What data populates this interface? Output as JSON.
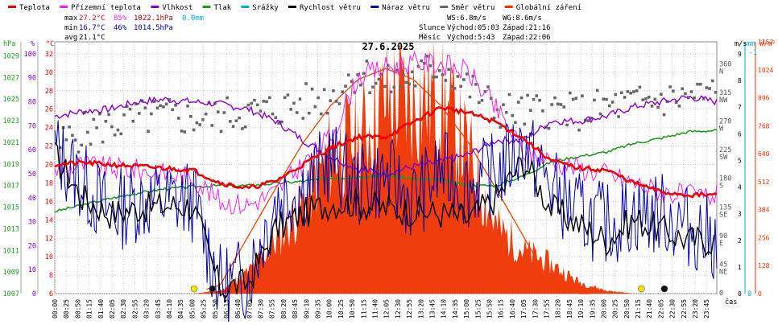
{
  "chart_data": {
    "type": "line",
    "title": "27.6.2025",
    "xlabel": "čas",
    "legend": [
      {
        "label": "Teplota",
        "color": "#ee0000"
      },
      {
        "label": "Přízemní teplota",
        "color": "#ee22ee"
      },
      {
        "label": "Vlhkost",
        "color": "#8800cc"
      },
      {
        "label": "Tlak",
        "color": "#229922"
      },
      {
        "label": "Srážky",
        "color": "#00aacc"
      },
      {
        "label": "Rychlost větru",
        "color": "#000000"
      },
      {
        "label": "Náraz větru",
        "color": "#0000aa"
      },
      {
        "label": "Směr větru",
        "color": "#666666"
      },
      {
        "label": "Globální záření",
        "color": "#ee3300"
      }
    ],
    "stats": {
      "max": {
        "label": "max",
        "temp": "27.2°C",
        "hum": "85%",
        "press": "1022.1hPa",
        "rain": "0.0mm"
      },
      "min": {
        "label": "min",
        "temp": "16.7°C",
        "hum": "46%",
        "press": "1014.5hPa"
      },
      "avg": {
        "label": "avg",
        "temp": "21.1°C"
      }
    },
    "info": {
      "ws": "WS:6.8m/s",
      "wg": "WG:8.6m/s",
      "sun_label": "Slunce",
      "sun_rise": "Východ:05:03",
      "sun_set": "Západ:21:16",
      "moon_label": "Měsíc",
      "moon_rise": "Východ:5:43",
      "moon_set": "Západ:22:06"
    },
    "axes": {
      "hpa": {
        "label": "hPa",
        "ticks": [
          "1029",
          "1027",
          "1025",
          "1023",
          "1021",
          "1019",
          "1017",
          "1015",
          "1013",
          "1011",
          "1009",
          "1007"
        ]
      },
      "pct": {
        "label": "%",
        "ticks": [
          "100",
          "90",
          "80",
          "70",
          "60",
          "50",
          "40",
          "30",
          "20",
          "10",
          "0"
        ]
      },
      "celsius": {
        "label": "°C",
        "ticks": [
          "32",
          "30",
          "28",
          "26",
          "24",
          "22",
          "20",
          "18",
          "16",
          "14",
          "12",
          "10",
          "8",
          "6"
        ]
      },
      "dir": {
        "label": "m/s",
        "ticks": [
          "360 N",
          "315 NW",
          "270 W",
          "225 SW",
          "180 S",
          "135 SE",
          "90 E",
          "45 NE",
          "0"
        ]
      },
      "ms": {
        "ticks": [
          "9",
          "8",
          "7",
          "6",
          "5",
          "4",
          "3",
          "2",
          "1",
          "0"
        ]
      },
      "mm": {
        "label": "mm",
        "ticks": [
          "-1",
          "0"
        ]
      },
      "wm": {
        "label": "W/m²",
        "ticks": [
          "1152",
          "1024",
          "896",
          "768",
          "640",
          "512",
          "384",
          "256",
          "128",
          "0"
        ]
      },
      "ylim": {
        "temp": [
          6,
          33.3
        ],
        "hum": [
          0,
          105
        ],
        "press": [
          1007,
          1030.3
        ],
        "dir": [
          0,
          396
        ],
        "wind": [
          0,
          9.45
        ],
        "rad": [
          0,
          1152
        ]
      }
    },
    "x_ticks": [
      "00:00",
      "00:25",
      "00:50",
      "01:15",
      "01:40",
      "02:05",
      "02:30",
      "02:55",
      "03:20",
      "03:45",
      "04:10",
      "04:35",
      "05:00",
      "05:25",
      "05:50",
      "06:15",
      "06:40",
      "07:05",
      "07:30",
      "07:55",
      "08:20",
      "08:45",
      "09:10",
      "09:35",
      "10:00",
      "10:25",
      "10:50",
      "11:15",
      "11:40",
      "12:05",
      "12:30",
      "12:55",
      "13:20",
      "13:45",
      "14:10",
      "14:35",
      "15:00",
      "15:25",
      "15:50",
      "16:15",
      "16:40",
      "17:05",
      "17:30",
      "17:55",
      "18:20",
      "18:45",
      "19:10",
      "19:35",
      "20:00",
      "20:25",
      "20:50",
      "21:15",
      "21:40",
      "22:05",
      "22:30",
      "22:55",
      "23:20",
      "23:45"
    ],
    "hours": [
      0,
      1,
      2,
      3,
      4,
      5,
      6,
      7,
      8,
      9,
      10,
      11,
      12,
      13,
      14,
      15,
      16,
      17,
      18,
      19,
      20,
      21,
      22,
      23,
      24
    ],
    "temperature": [
      20.0,
      20.2,
      20.0,
      19.8,
      19.6,
      19.4,
      18.0,
      17.4,
      18.2,
      20.0,
      21.8,
      23.0,
      23.0,
      24.6,
      26.2,
      25.6,
      24.6,
      22.8,
      20.4,
      19.6,
      19.4,
      18.0,
      17.0,
      16.7,
      16.7
    ],
    "ground_temperature": [
      19.4,
      20.0,
      19.6,
      19.4,
      19.0,
      18.6,
      16.0,
      15.6,
      17.0,
      20.0,
      23.0,
      29.5,
      30.5,
      31.0,
      31.0,
      30.0,
      26.0,
      21.4,
      20.4,
      19.6,
      19.0,
      18.0,
      17.0,
      16.6,
      16.6
    ],
    "humidity": [
      74,
      76,
      77,
      80,
      81,
      80,
      79,
      77,
      72,
      64,
      57,
      52,
      50,
      53,
      55,
      58,
      64,
      64,
      72,
      72,
      74,
      78,
      80,
      82,
      80
    ],
    "pressure": [
      1014.6,
      1015.2,
      1015.8,
      1016.3,
      1016.7,
      1016.9,
      1017.0,
      1017.0,
      1017.2,
      1017.4,
      1017.7,
      1017.8,
      1018.0,
      1017.6,
      1017.5,
      1017.0,
      1017.0,
      1017.9,
      1019.2,
      1019.7,
      1020.1,
      1020.9,
      1021.4,
      1022.0,
      1022.1
    ],
    "wind_speed": [
      5.2,
      3.6,
      3.0,
      3.2,
      3.3,
      3.3,
      0.2,
      0.4,
      2.4,
      3.0,
      3.4,
      3.4,
      3.2,
      3.1,
      3.0,
      2.8,
      3.6,
      5.0,
      3.2,
      2.6,
      2.0,
      2.8,
      2.4,
      2.0,
      2.0
    ],
    "wind_gust": [
      5.4,
      4.2,
      3.0,
      3.5,
      3.5,
      3.5,
      0.3,
      0.6,
      3.5,
      4.0,
      5.0,
      4.0,
      4.4,
      3.5,
      4.6,
      4.0,
      4.5,
      5.6,
      4.0,
      3.0,
      2.6,
      3.0,
      3.0,
      2.5,
      2.0
    ],
    "wind_direction": [
      230,
      255,
      265,
      275,
      280,
      275,
      280,
      285,
      290,
      300,
      310,
      350,
      330,
      340,
      360,
      325,
      290,
      285,
      290,
      285,
      295,
      300,
      305,
      310,
      315
    ],
    "solar_radiation": [
      0,
      0,
      0,
      0,
      0,
      0,
      15,
      110,
      260,
      450,
      720,
      780,
      980,
      980,
      1000,
      700,
      340,
      220,
      150,
      60,
      15,
      0,
      0,
      0,
      0
    ],
    "theoretical_radiation": [
      0,
      0,
      0,
      0,
      0,
      0,
      40,
      260,
      480,
      690,
      860,
      980,
      1030,
      980,
      860,
      690,
      480,
      260,
      40,
      0,
      0,
      0,
      0,
      0,
      0
    ],
    "markers": [
      {
        "label": "05:03",
        "color": "#f2e600"
      },
      {
        "label": "05:43",
        "color": "#111111"
      },
      {
        "label": "21:16",
        "color": "#f2e600"
      },
      {
        "label": "22:06",
        "color": "#111111"
      }
    ]
  }
}
